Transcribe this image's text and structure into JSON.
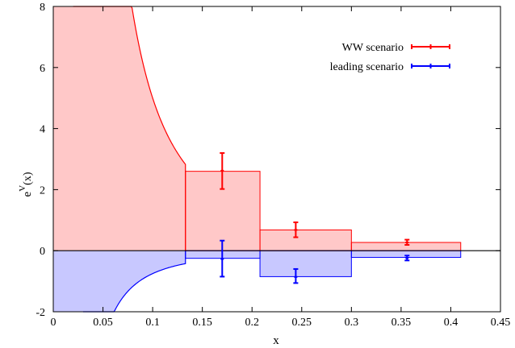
{
  "chart_data": {
    "type": "bar",
    "xlabel": "x",
    "ylabel": "e",
    "ylabel_sup": "V",
    "ylabel_sub": "(x)",
    "xlim": [
      0,
      0.45
    ],
    "ylim": [
      -2,
      8
    ],
    "x_ticks": [
      0,
      0.05,
      0.1,
      0.15,
      0.2,
      0.25,
      0.3,
      0.35,
      0.4,
      0.45
    ],
    "x_tick_labels": [
      "0",
      "0.05",
      "0.1",
      "0.15",
      "0.2",
      "0.25",
      "0.3",
      "0.35",
      "0.4",
      "0.45"
    ],
    "y_ticks": [
      -2,
      0,
      2,
      4,
      6,
      8
    ],
    "y_tick_labels": [
      "-2",
      "0",
      "2",
      "4",
      "6",
      "8"
    ],
    "grid": false,
    "legend_position": "top-right",
    "bins": [
      {
        "x_low": 0.133,
        "x_high": 0.208
      },
      {
        "x_low": 0.208,
        "x_high": 0.3
      },
      {
        "x_low": 0.3,
        "x_high": 0.41
      }
    ],
    "series": [
      {
        "name": "WW scenario",
        "color": "#ff0000",
        "fill_color": "#ffc8c8",
        "band_values": [
          2.6,
          0.68,
          0.27
        ],
        "points": [
          {
            "x": 0.17,
            "y": 2.62,
            "y_low": 2.02,
            "y_high": 3.2
          },
          {
            "x": 0.244,
            "y": 0.68,
            "y_low": 0.44,
            "y_high": 0.93
          },
          {
            "x": 0.356,
            "y": 0.27,
            "y_low": 0.19,
            "y_high": 0.36
          }
        ],
        "curve": {
          "type": "power",
          "coeff": 0.05,
          "exponent": -2,
          "x_start": 0.02,
          "x_end": 0.133,
          "drop_to": 0
        }
      },
      {
        "name": "leading scenario",
        "color": "#0000ff",
        "fill_color": "#c8c8ff",
        "band_values": [
          -0.25,
          -0.85,
          -0.22
        ],
        "points": [
          {
            "x": 0.17,
            "y": -0.27,
            "y_low": -0.85,
            "y_high": 0.33
          },
          {
            "x": 0.244,
            "y": -0.86,
            "y_low": -1.06,
            "y_high": -0.6
          },
          {
            "x": 0.356,
            "y": -0.24,
            "y_low": -0.32,
            "y_high": -0.16
          }
        ],
        "curve": {
          "type": "power",
          "coeff": -0.0075,
          "exponent": -2,
          "x_start": 0.03,
          "x_end": 0.133,
          "drop_to": 0
        }
      }
    ]
  }
}
